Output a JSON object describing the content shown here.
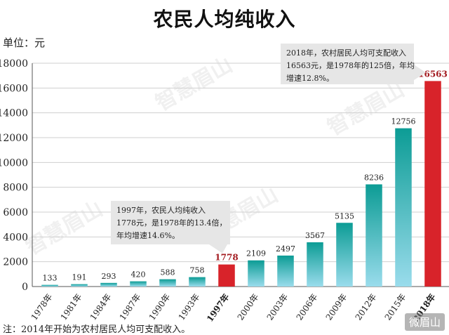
{
  "title": "农民人均纯收入",
  "unit_label": "单位：元",
  "footnote": "注：2014年开始为农村居民人均可支配收入。",
  "watermark_text": "智慧眉山",
  "brand": "微眉山",
  "colors": {
    "bar_gradient_top": "#0c9c95",
    "bar_gradient_bottom": "#9adcec",
    "highlight": "#d8232a",
    "grid": "#cfcfcf",
    "callout_bg": "#e6e6e6"
  },
  "chart_data": {
    "type": "bar",
    "categories": [
      "1978年",
      "1981年",
      "1984年",
      "1987年",
      "1990年",
      "1993年",
      "1997年",
      "2000年",
      "2003年",
      "2006年",
      "2009年",
      "2012年",
      "2015年",
      "2018年"
    ],
    "values": [
      133,
      191,
      293,
      420,
      588,
      758,
      1778,
      2109,
      2497,
      3567,
      5135,
      8236,
      12756,
      16563
    ],
    "highlighted_categories": [
      "1997年",
      "2018年"
    ],
    "yticks": [
      0,
      2000,
      4000,
      6000,
      8000,
      10000,
      12000,
      14000,
      16000,
      18000
    ],
    "ylim": [
      0,
      18000
    ],
    "grid": true,
    "annotations": [
      {
        "category": "1997年",
        "lines": [
          "1997年，农民人均纯收入",
          "1778元，是1978年的13.4倍，",
          "年均增速14.6%。"
        ]
      },
      {
        "category": "2018年",
        "lines": [
          "2018年，农村居民人均可支配收入",
          "16563元，是1978年的125倍，年均",
          "增速12.8%。"
        ]
      }
    ]
  }
}
